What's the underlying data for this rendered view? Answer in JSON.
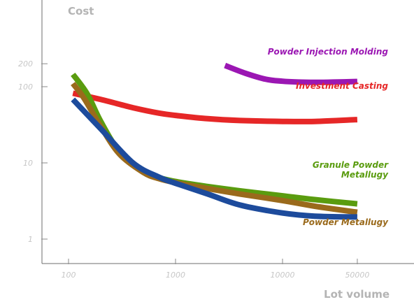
{
  "chart_data": {
    "type": "line",
    "xlabel": "Lot volume",
    "ylabel": "Cost",
    "x_scale": "log",
    "y_scale": "log",
    "xlim": [
      100,
      50000
    ],
    "ylim": [
      1,
      200
    ],
    "grid": false,
    "x_ticks": [
      {
        "value": 100,
        "label": "100"
      },
      {
        "value": 1000,
        "label": "1000"
      },
      {
        "value": 10000,
        "label": "10000"
      },
      {
        "value": 50000,
        "label": "50000"
      }
    ],
    "y_ticks": [
      {
        "value": 1,
        "label": "1"
      },
      {
        "value": 10,
        "label": "10"
      },
      {
        "value": 100,
        "label": "100"
      },
      {
        "value": 200,
        "label": "200"
      }
    ],
    "series": [
      {
        "name": "Powder Injection Molding",
        "color": "#9b17b3",
        "label_lines": [
          "Powder Injection Molding"
        ],
        "points": [
          [
            2900,
            190
          ],
          [
            4500,
            150
          ],
          [
            7000,
            125
          ],
          [
            10000,
            118
          ],
          [
            14000,
            115
          ],
          [
            20000,
            114
          ],
          [
            30000,
            115
          ],
          [
            50000,
            117
          ]
        ]
      },
      {
        "name": "Investment Casting",
        "color": "#e62727",
        "label_lines": [
          "Investment Casting"
        ],
        "points": [
          [
            110,
            82
          ],
          [
            200,
            68
          ],
          [
            400,
            53
          ],
          [
            700,
            45
          ],
          [
            1000,
            42
          ],
          [
            2000,
            38
          ],
          [
            4000,
            36
          ],
          [
            10000,
            35
          ],
          [
            20000,
            35
          ],
          [
            50000,
            37
          ]
        ]
      },
      {
        "name": "Granule Powder Metallugy",
        "color": "#5a9c0f",
        "label_lines": [
          "Granule Powder",
          "Metallugy"
        ],
        "points": [
          [
            110,
            145
          ],
          [
            150,
            80
          ],
          [
            200,
            35
          ],
          [
            300,
            14
          ],
          [
            500,
            7.6
          ],
          [
            700,
            6.4
          ],
          [
            1000,
            5.7
          ],
          [
            2000,
            4.9
          ],
          [
            4000,
            4.3
          ],
          [
            10000,
            3.7
          ],
          [
            20000,
            3.3
          ],
          [
            50000,
            2.9
          ]
        ]
      },
      {
        "name": "Powder Metallugy",
        "color": "#9a6a1c",
        "label_lines": [
          "Powder Metallugy"
        ],
        "points": [
          [
            110,
            110
          ],
          [
            140,
            70
          ],
          [
            200,
            30
          ],
          [
            300,
            13
          ],
          [
            500,
            7.5
          ],
          [
            700,
            6.2
          ],
          [
            1000,
            5.5
          ],
          [
            2000,
            4.6
          ],
          [
            4000,
            3.9
          ],
          [
            10000,
            3.2
          ],
          [
            20000,
            2.7
          ],
          [
            50000,
            2.25
          ]
        ]
      },
      {
        "name": "",
        "color": "#1d4b9c",
        "label_lines": [],
        "points": [
          [
            110,
            68
          ],
          [
            200,
            28
          ],
          [
            400,
            10
          ],
          [
            700,
            6.5
          ],
          [
            1000,
            5.4
          ],
          [
            2000,
            3.9
          ],
          [
            4000,
            2.8
          ],
          [
            10000,
            2.2
          ],
          [
            20000,
            2.0
          ],
          [
            50000,
            1.95
          ]
        ]
      }
    ]
  }
}
